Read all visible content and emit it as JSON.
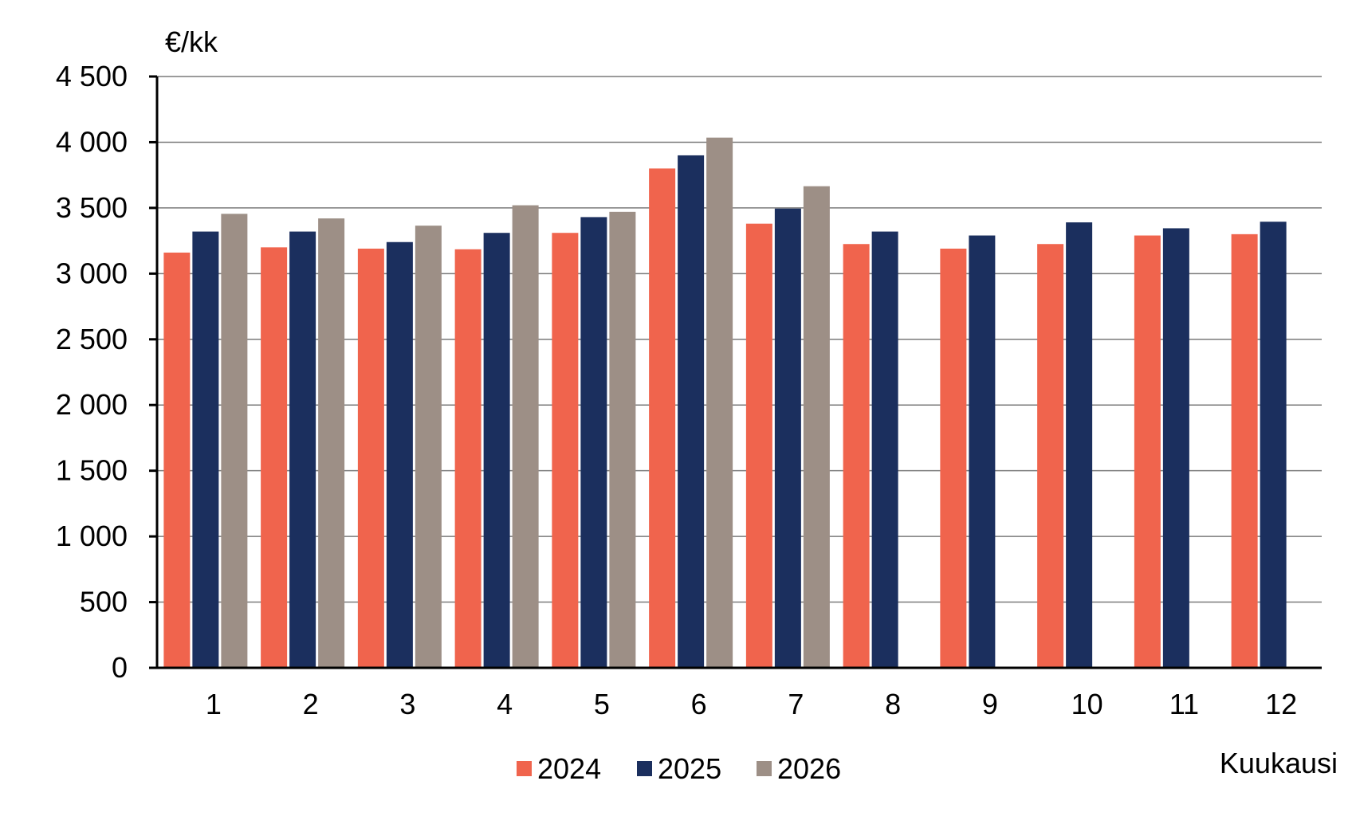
{
  "chart_data": {
    "type": "bar",
    "ylabel": "€/kk",
    "xlabel": "Kuukausi",
    "ylim": [
      0,
      4500
    ],
    "yticks": [
      0,
      500,
      1000,
      1500,
      2000,
      2500,
      3000,
      3500,
      4000,
      4500
    ],
    "ytick_labels": [
      "0",
      "500",
      "1 000",
      "1 500",
      "2 000",
      "2 500",
      "3 000",
      "3 500",
      "4 000",
      "4 500"
    ],
    "categories": [
      "1",
      "2",
      "3",
      "4",
      "5",
      "6",
      "7",
      "8",
      "9",
      "10",
      "11",
      "12"
    ],
    "grid": true,
    "legend_position": "bottom",
    "series": [
      {
        "name": "2024",
        "color": "#F0644D",
        "values": [
          3160,
          3200,
          3190,
          3185,
          3310,
          3800,
          3380,
          3225,
          3190,
          3225,
          3290,
          3300
        ]
      },
      {
        "name": "2025",
        "color": "#1B2F5E",
        "values": [
          3320,
          3320,
          3240,
          3310,
          3430,
          3900,
          3495,
          3320,
          3290,
          3390,
          3345,
          3395
        ]
      },
      {
        "name": "2026",
        "color": "#9D8F86",
        "values": [
          3455,
          3420,
          3365,
          3520,
          3470,
          4035,
          3665,
          null,
          null,
          null,
          null,
          null
        ]
      }
    ]
  }
}
